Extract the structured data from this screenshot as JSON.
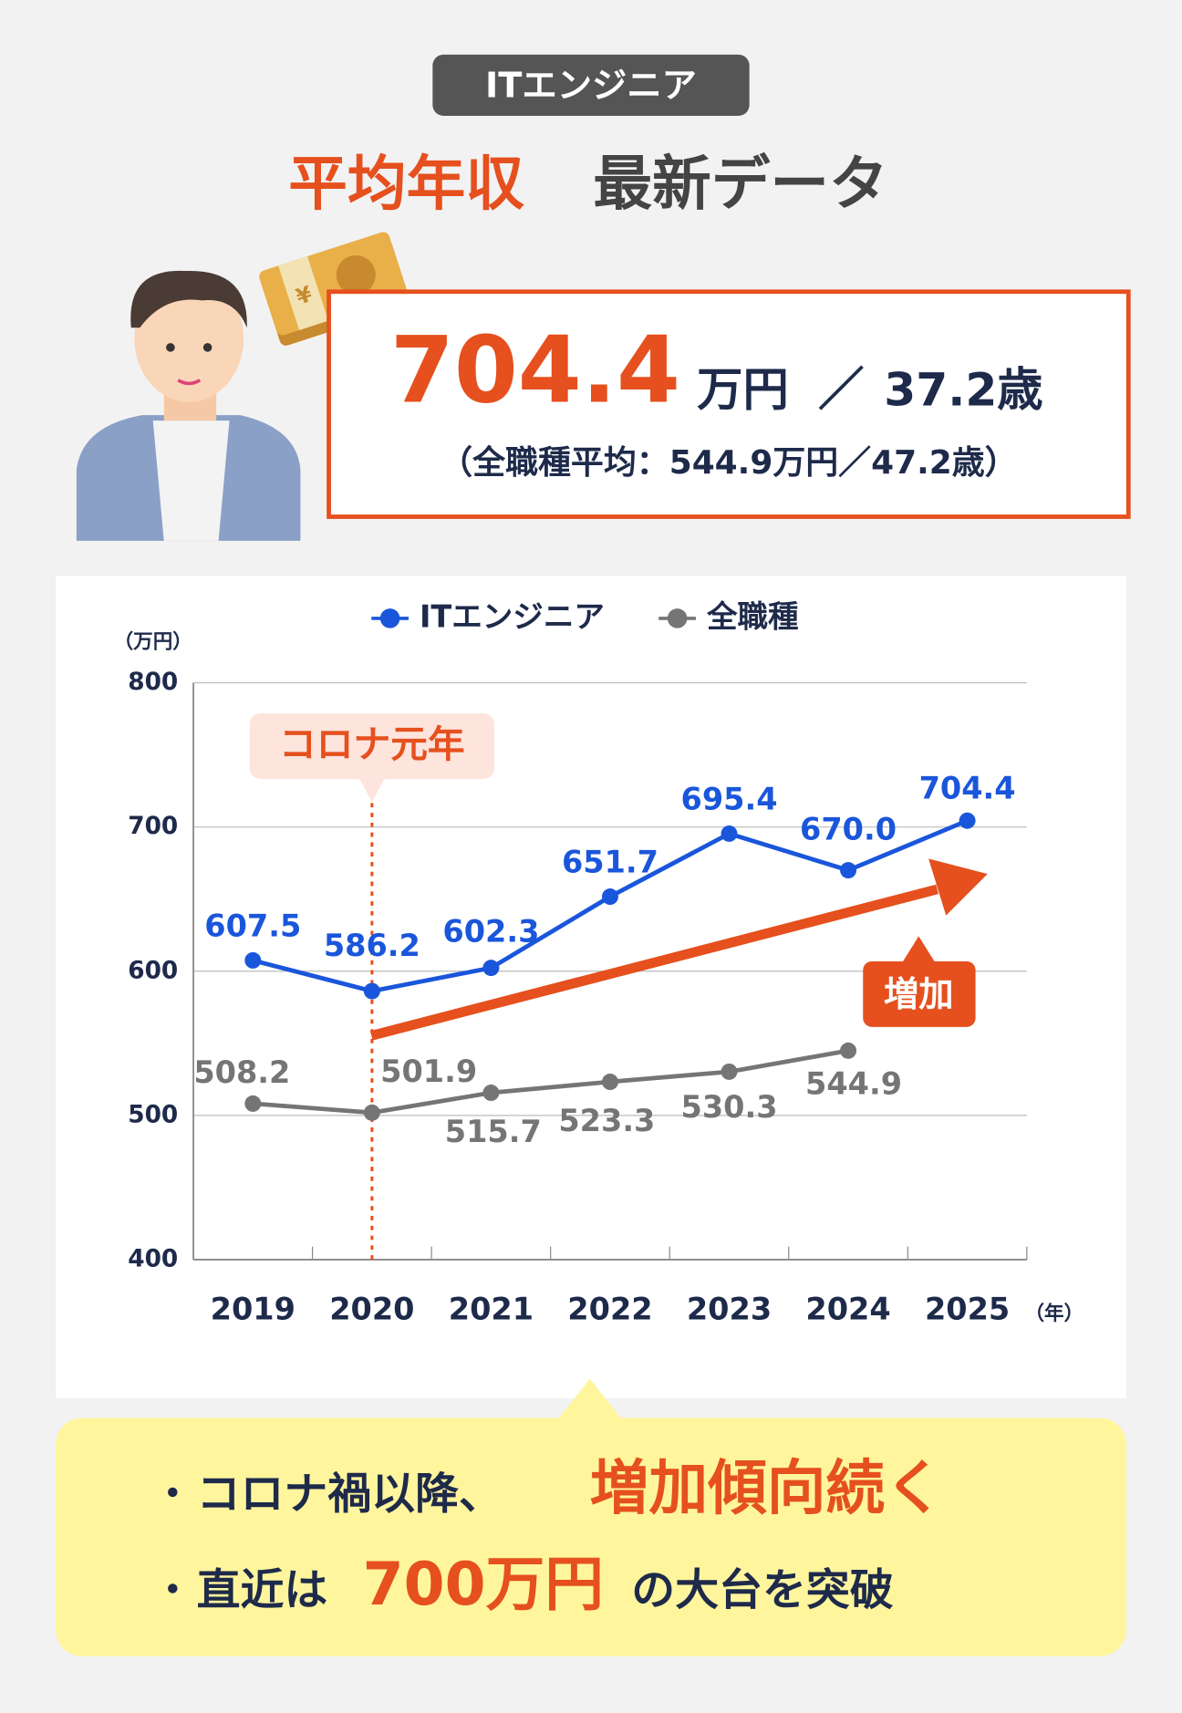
{
  "header": {
    "badge": "ITエンジニア",
    "title_highlight": "平均年収",
    "title_rest": "最新データ"
  },
  "summary": {
    "salary": "704.4",
    "salary_unit": "万円",
    "separator": "／",
    "age": "37.2歳",
    "comparison": "（全職種平均：544.9万円／47.2歳）"
  },
  "chart_data": {
    "type": "line",
    "y_unit": "（万円）",
    "x_unit": "（年）",
    "categories": [
      "2019",
      "2020",
      "2021",
      "2022",
      "2023",
      "2024",
      "2025"
    ],
    "series": [
      {
        "name": "ITエンジニア",
        "color": "#1a56db",
        "values": [
          607.5,
          586.2,
          602.3,
          651.7,
          695.4,
          670.0,
          704.4
        ],
        "value_labels": [
          "607.5",
          "586.2",
          "602.3",
          "651.7",
          "695.4",
          "670.0",
          "704.4"
        ]
      },
      {
        "name": "全職種",
        "color": "#757575",
        "values": [
          508.2,
          501.9,
          515.7,
          523.3,
          530.3,
          544.9,
          null
        ],
        "value_labels": [
          "508.2",
          "501.9",
          "515.7",
          "523.3",
          "530.3",
          "544.9",
          null
        ]
      }
    ],
    "ylim": [
      400,
      800
    ],
    "yticks": [
      400,
      500,
      600,
      700,
      800
    ],
    "grid": true,
    "legend": "top",
    "annotation": {
      "text": "コロナ元年",
      "category": "2020"
    },
    "trend_label": "増加"
  },
  "notes": [
    {
      "bullet": "・",
      "text": "コロナ禍以降、",
      "highlight": "増加傾向続く"
    },
    {
      "bullet": "・",
      "text": "直近は",
      "highlight": "700万円",
      "text_after": "の大台を突破"
    }
  ]
}
